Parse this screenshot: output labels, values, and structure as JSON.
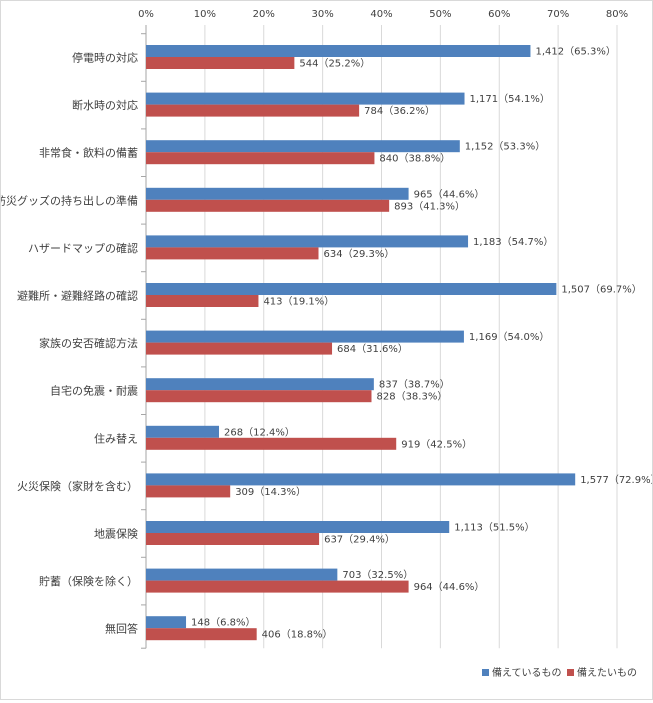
{
  "chart_data": {
    "type": "bar",
    "orientation": "horizontal",
    "categories": [
      "停電時の対応",
      "断水時の対応",
      "非常食・飲料の備蓄",
      "防災グッズの持ち出しの準備",
      "ハザードマップの確認",
      "避難所・避難経路の確認",
      "家族の安否確認方法",
      "自宅の免震・耐震",
      "住み替え",
      "火災保険（家財を含む）",
      "地震保険",
      "貯蓄（保険を除く）",
      "無回答"
    ],
    "series": [
      {
        "name": "備えているもの",
        "color": "#4f81bd",
        "values": [
          65.3,
          54.1,
          53.3,
          44.6,
          54.7,
          69.7,
          54.0,
          38.7,
          12.4,
          72.9,
          51.5,
          32.5,
          6.8
        ],
        "labels": [
          "1,412（65.3%）",
          "1,171（54.1%）",
          "1,152（53.3%）",
          "965（44.6%）",
          "1,183（54.7%）",
          "1,507（69.7%）",
          "1,169（54.0%）",
          "837（38.7%）",
          "268（12.4%）",
          "1,577（72.9%）",
          "1,113（51.5%）",
          "703（32.5%）",
          "148（6.8%）"
        ]
      },
      {
        "name": "備えたいもの",
        "color": "#c0504d",
        "values": [
          25.2,
          36.2,
          38.8,
          41.3,
          29.3,
          19.1,
          31.6,
          38.3,
          42.5,
          14.3,
          29.4,
          44.6,
          18.8
        ],
        "labels": [
          "544（25.2%）",
          "784（36.2%）",
          "840（38.8%）",
          "893（41.3%）",
          "634（29.3%）",
          "413（19.1%）",
          "684（31.6%）",
          "828（38.3%）",
          "919（42.5%）",
          "309（14.3%）",
          "637（29.4%）",
          "964（44.6%）",
          "406（18.8%）"
        ]
      }
    ],
    "x_ticks": [
      "0%",
      "10%",
      "20%",
      "30%",
      "40%",
      "50%",
      "60%",
      "70%",
      "80%"
    ],
    "xlim": [
      0,
      80
    ],
    "grid": true,
    "legend_position": "bottom-right",
    "axis_position": "top"
  }
}
